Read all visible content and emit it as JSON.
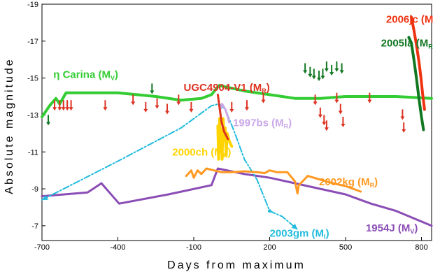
{
  "chart_data": {
    "type": "line",
    "xlabel": "Days from maximum",
    "ylabel": "Absolute magnitude",
    "xlim": [
      -700,
      840
    ],
    "ylim": [
      -19,
      -6.2
    ],
    "y_inverted": true,
    "x_ticks": [
      -700,
      -400,
      -100,
      200,
      500,
      800
    ],
    "x_tick_labels": [
      "-700",
      "-400",
      "-100",
      "200",
      "500",
      "800"
    ],
    "y_ticks": [
      -19,
      -17,
      -15,
      -13,
      -11,
      -9,
      -7
    ],
    "y_tick_labels": [
      "-19",
      "-17",
      "-15",
      "-13",
      "-11",
      "-9",
      "-7"
    ],
    "grid": false,
    "series": [
      {
        "name": "η Carina",
        "band": "V",
        "color": "#33cc33",
        "width": 4,
        "label_x": -655,
        "label_y": -15.0,
        "points": [
          [
            -700,
            -12.9
          ],
          [
            -670,
            -13.5
          ],
          [
            -645,
            -13.9
          ],
          [
            -630,
            -13.6
          ],
          [
            -605,
            -14.2
          ],
          [
            -400,
            -14.2
          ],
          [
            -250,
            -14.0
          ],
          [
            -150,
            -13.8
          ],
          [
            -70,
            -13.9
          ],
          [
            -30,
            -14.1
          ],
          [
            0,
            -14.6
          ],
          [
            100,
            -14.3
          ],
          [
            200,
            -14.1
          ],
          [
            300,
            -13.9
          ],
          [
            400,
            -13.9
          ],
          [
            500,
            -14.0
          ],
          [
            600,
            -14.0
          ],
          [
            700,
            -14.0
          ],
          [
            840,
            -13.9
          ]
        ]
      },
      {
        "name": "1954J",
        "band": "V",
        "color": "#8a4db5",
        "width": 3,
        "label_x": 580,
        "label_y": -6.7,
        "points": [
          [
            -700,
            -8.6
          ],
          [
            -520,
            -8.8
          ],
          [
            -465,
            -9.3
          ],
          [
            -395,
            -8.2
          ],
          [
            -200,
            -8.7
          ],
          [
            -30,
            -9.2
          ],
          [
            -5,
            -10.1
          ],
          [
            100,
            -9.8
          ],
          [
            200,
            -9.6
          ],
          [
            300,
            -9.3
          ],
          [
            400,
            -9.0
          ],
          [
            500,
            -8.7
          ],
          [
            600,
            -8.2
          ],
          [
            700,
            -7.8
          ],
          [
            840,
            -7.0
          ]
        ]
      },
      {
        "name": "2003gm",
        "band": "I",
        "color": "#22bbdd",
        "width": 2,
        "dash": "9,3,2,3",
        "label_x": 200,
        "label_y": -6.4,
        "points": [
          [
            -700,
            -8.4
          ],
          [
            -400,
            -10.5
          ],
          [
            -150,
            -12.3
          ],
          [
            -30,
            -13.5
          ],
          [
            0,
            -13.6
          ],
          [
            25,
            -13.3
          ],
          [
            60,
            -12.1
          ],
          [
            100,
            -10.6
          ],
          [
            150,
            -9.5
          ],
          [
            200,
            -7.8
          ],
          [
            250,
            -7.5
          ],
          [
            310,
            -6.8
          ]
        ]
      },
      {
        "name": "2000ch",
        "band": "R",
        "color": "#ffd400",
        "width": 4,
        "label_x": -185,
        "label_y": -10.8,
        "points": [
          [
            -5,
            -12.4
          ],
          [
            -2,
            -10.6
          ],
          [
            2,
            -12.8
          ],
          [
            5,
            -11.0
          ],
          [
            8,
            -12.2
          ],
          [
            12,
            -10.6
          ],
          [
            16,
            -12.8
          ],
          [
            20,
            -11.6
          ],
          [
            24,
            -12.3
          ],
          [
            28,
            -10.8
          ],
          [
            32,
            -12.0
          ],
          [
            40,
            -11.6
          ],
          [
            50,
            -11.3
          ]
        ]
      },
      {
        "name": "1997bs",
        "band": "R",
        "color": "#c9a8e8",
        "width": 3,
        "label_x": 55,
        "label_y": -12.4,
        "points": [
          [
            5,
            -13.3
          ],
          [
            12,
            -13.6
          ],
          [
            25,
            -13.3
          ],
          [
            35,
            -12.9
          ],
          [
            40,
            -12.6
          ]
        ]
      },
      {
        "name": "2002kg",
        "band": "R",
        "color": "#ff9922",
        "width": 3,
        "label_x": 395,
        "label_y": -9.2,
        "points": [
          [
            -130,
            -9.7
          ],
          [
            -110,
            -10.0
          ],
          [
            -100,
            -9.6
          ],
          [
            -85,
            -10.0
          ],
          [
            -70,
            -9.8
          ],
          [
            -50,
            -10.1
          ],
          [
            -20,
            -10.0
          ],
          [
            10,
            -9.9
          ],
          [
            50,
            -9.9
          ],
          [
            100,
            -9.95
          ],
          [
            150,
            -9.9
          ],
          [
            180,
            -9.85
          ],
          [
            200,
            -10.0
          ],
          [
            230,
            -9.9
          ],
          [
            270,
            -9.9
          ],
          [
            300,
            -9.4
          ],
          [
            310,
            -8.75
          ],
          [
            315,
            -9.2
          ],
          [
            330,
            -9.4
          ],
          [
            350,
            -9.7
          ],
          [
            400,
            -9.5
          ],
          [
            450,
            -9.3
          ],
          [
            500,
            -9.15
          ],
          [
            560,
            -8.85
          ]
        ]
      },
      {
        "name": "UGC4904-V1",
        "band": "R",
        "color": "#dd3322",
        "width": 3,
        "label_x": -140,
        "label_y": -14.3,
        "points": [
          [
            -5,
            -14.1
          ],
          [
            2,
            -13.4
          ],
          [
            10,
            -12.6
          ],
          [
            20,
            -12.1
          ],
          [
            35,
            -11.7
          ]
        ]
      },
      {
        "name": "2006jc",
        "band": "R",
        "color": "#ee3311",
        "width": 4,
        "label_x": 660,
        "label_y": -18.0,
        "points": [
          [
            760,
            -18.3
          ],
          [
            770,
            -17.6
          ],
          [
            780,
            -16.8
          ],
          [
            790,
            -15.9
          ],
          [
            798,
            -15.0
          ],
          [
            805,
            -14.1
          ],
          [
            812,
            -13.3
          ]
        ]
      },
      {
        "name": "2005la",
        "band": "R",
        "color": "#117722",
        "width": 4,
        "label_x": 640,
        "label_y": -16.7,
        "points": [
          [
            750,
            -17.2
          ],
          [
            760,
            -16.9
          ],
          [
            770,
            -16.0
          ],
          [
            780,
            -15.0
          ],
          [
            790,
            -13.9
          ],
          [
            800,
            -12.9
          ],
          [
            808,
            -12.2
          ]
        ]
      }
    ],
    "upper_limits": [
      {
        "color": "#dd3322",
        "points": [
          [
            -650,
            -13.5
          ],
          [
            -630,
            -13.5
          ],
          [
            -615,
            -13.5
          ],
          [
            -600,
            -13.5
          ],
          [
            -585,
            -13.5
          ],
          [
            -450,
            -13.5
          ],
          [
            -340,
            -13.8
          ],
          [
            -290,
            -13.4
          ],
          [
            -245,
            -13.6
          ],
          [
            -205,
            -13.3
          ],
          [
            -160,
            -13.8
          ],
          [
            -110,
            -13.4
          ],
          [
            50,
            -13.4
          ],
          [
            110,
            -13.5
          ],
          [
            175,
            -13.9
          ],
          [
            380,
            -13.8
          ],
          [
            400,
            -13.1
          ],
          [
            415,
            -12.7
          ],
          [
            425,
            -12.4
          ],
          [
            465,
            -13.9
          ],
          [
            480,
            -13.3
          ],
          [
            490,
            -12.6
          ],
          [
            595,
            -13.9
          ],
          [
            725,
            -13.0
          ],
          [
            730,
            -12.3
          ]
        ]
      },
      {
        "color": "#117722",
        "points": [
          [
            -675,
            -12.7
          ],
          [
            -265,
            -14.4
          ],
          [
            340,
            -15.5
          ],
          [
            360,
            -15.3
          ],
          [
            375,
            -15.2
          ],
          [
            395,
            -15.1
          ],
          [
            410,
            -15.2
          ],
          [
            425,
            -15.6
          ],
          [
            445,
            -15.4
          ],
          [
            465,
            -15.6
          ],
          [
            485,
            -15.5
          ]
        ]
      }
    ]
  }
}
